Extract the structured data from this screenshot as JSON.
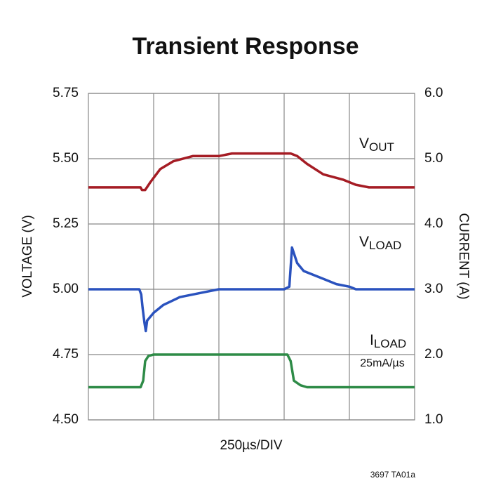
{
  "chart_data": {
    "type": "line",
    "title": "Transient Response",
    "xlabel": "250µs/DIV",
    "ylabel": "VOLTAGE (V)",
    "y2label": "CURRENT (A)",
    "footnote": "3697 TA01a",
    "annotations": [
      "25mA/µs"
    ],
    "xlim": [
      0,
      5
    ],
    "ylim": [
      4.5,
      5.75
    ],
    "y2lim": [
      1.0,
      6.0
    ],
    "grid": true,
    "yticks": [
      {
        "value": 4.5,
        "label": "4.50"
      },
      4.75,
      {
        "value": 5.0,
        "label": "5.00"
      },
      5.25,
      {
        "value": 5.5,
        "label": "5.50"
      },
      5.75
    ],
    "y2ticks": [
      {
        "value": 1,
        "label": "1.0"
      },
      {
        "value": 2,
        "label": "2.0"
      },
      {
        "value": 3,
        "label": "3.0"
      },
      {
        "value": 4,
        "label": "4.0"
      },
      {
        "value": 5,
        "label": "5.0"
      },
      {
        "value": 6,
        "label": "6.0"
      }
    ],
    "series": [
      {
        "name": "VOUT",
        "color": "#a51c24",
        "x": [
          0,
          0.8,
          0.82,
          0.87,
          0.95,
          1.1,
          1.3,
          1.6,
          2.0,
          2.2,
          3.1,
          3.2,
          3.35,
          3.6,
          3.9,
          4.1,
          4.3,
          5
        ],
        "values": [
          5.39,
          5.39,
          5.38,
          5.38,
          5.41,
          5.46,
          5.49,
          5.51,
          5.51,
          5.52,
          5.52,
          5.51,
          5.48,
          5.44,
          5.42,
          5.4,
          5.39,
          5.39
        ]
      },
      {
        "name": "VLOAD",
        "color": "#2a52be",
        "x": [
          0,
          0.78,
          0.81,
          0.83,
          0.86,
          0.88,
          0.9,
          1.0,
          1.15,
          1.4,
          1.8,
          2.0,
          3.0,
          3.08,
          3.12,
          3.2,
          3.3,
          3.6,
          3.8,
          4.0,
          4.1,
          5
        ],
        "values": [
          5.0,
          5.0,
          4.98,
          4.93,
          4.87,
          4.84,
          4.88,
          4.91,
          4.94,
          4.97,
          4.99,
          5.0,
          5.0,
          5.01,
          5.16,
          5.1,
          5.07,
          5.04,
          5.02,
          5.01,
          5.0,
          5.0
        ]
      },
      {
        "name": "ILOAD",
        "color": "#2e8b47",
        "axis": "y2",
        "x": [
          0,
          0.8,
          0.84,
          0.87,
          0.92,
          1.0,
          3.05,
          3.1,
          3.15,
          3.25,
          3.35,
          5
        ],
        "values": [
          1.5,
          1.5,
          1.6,
          1.9,
          1.98,
          2.0,
          2.0,
          1.9,
          1.6,
          1.53,
          1.5,
          1.5
        ]
      }
    ]
  }
}
